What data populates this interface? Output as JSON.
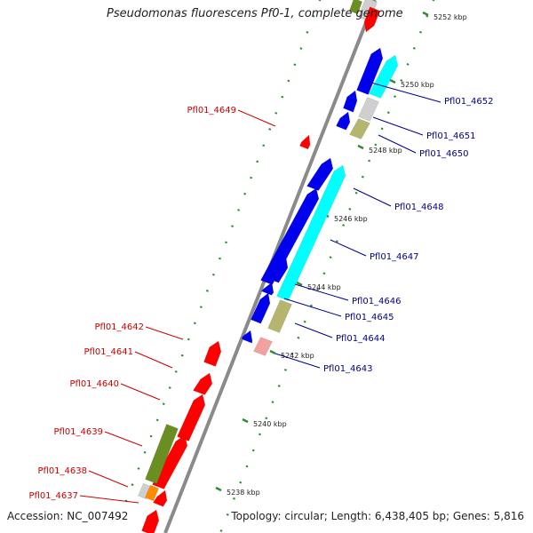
{
  "title": "Pseudomonas fluorescens Pf0-1, complete genome",
  "accession": "Accession: NC_007492",
  "summary": "Topology: circular; Length: 6,438,405 bp; Genes: 5,816",
  "colors": {
    "backbone": "#8a8a8a",
    "tick": "#2e8b2e",
    "forward_label": "#00008b",
    "reverse_label": "#cc0000",
    "red": "#ff0000",
    "blue": "#0000ee",
    "cyan": "#00ffff",
    "olive": "#b5b56e",
    "darkolive": "#6b8e23",
    "pink": "#f2a0a0",
    "grey": "#cfcfcf",
    "orange": "#ff8c00"
  },
  "kbp_ticks": [
    "5238 kbp",
    "5240 kbp",
    "5242 kbp",
    "5244 kbp",
    "5246 kbp",
    "5248 kbp",
    "5250 kbp",
    "5252 kbp"
  ],
  "forward_genes": [
    "Pfl01_4652",
    "Pfl01_4651",
    "Pfl01_4650",
    "Pfl01_4648",
    "Pfl01_4647",
    "Pfl01_4646",
    "Pfl01_4645",
    "Pfl01_4644",
    "Pfl01_4643"
  ],
  "reverse_genes": [
    "Pfl01_4649",
    "Pfl01_4642",
    "Pfl01_4641",
    "Pfl01_4640",
    "Pfl01_4639",
    "Pfl01_4638",
    "Pfl01_4637"
  ]
}
